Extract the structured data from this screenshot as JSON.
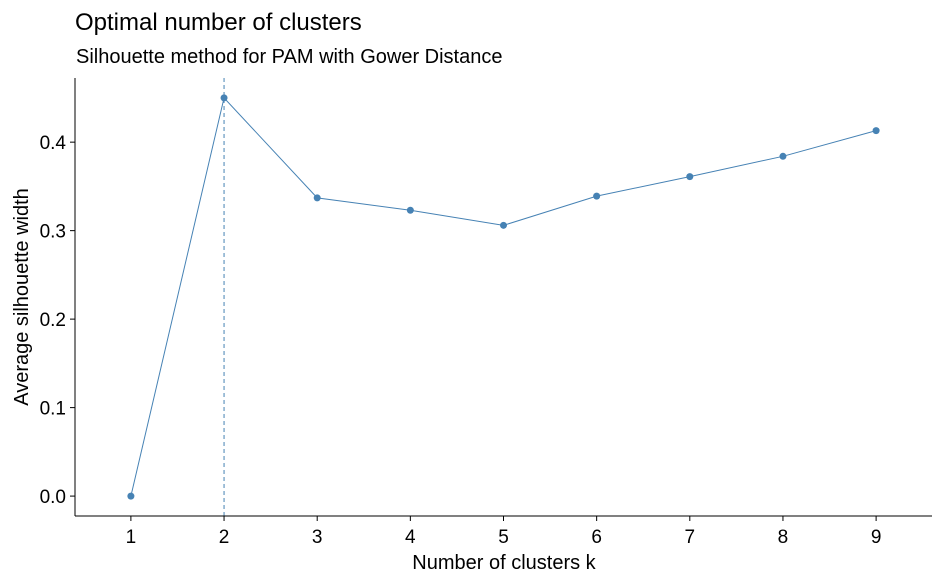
{
  "chart_data": {
    "type": "line",
    "title": "Optimal number of clusters",
    "subtitle": "Silhouette method for PAM with Gower Distance",
    "xlabel": "Number of clusters k",
    "ylabel": "Average silhouette width",
    "x": [
      1,
      2,
      3,
      4,
      5,
      6,
      7,
      8,
      9
    ],
    "x_tick_labels": [
      "1",
      "2",
      "3",
      "4",
      "5",
      "6",
      "7",
      "8",
      "9"
    ],
    "y_ticks": [
      0.0,
      0.1,
      0.2,
      0.3,
      0.4
    ],
    "y_tick_labels": [
      "0.0",
      "0.1",
      "0.2",
      "0.3",
      "0.4"
    ],
    "series": [
      {
        "values": [
          0.0,
          0.45,
          0.337,
          0.323,
          0.306,
          0.339,
          0.361,
          0.384,
          0.413
        ]
      }
    ],
    "optimal_k": 2,
    "xlim": [
      0.4,
      9.6
    ],
    "ylim": [
      -0.0225,
      0.4725
    ],
    "grid": false,
    "legend": "none",
    "line_color": "#4682B4",
    "point_color": "#4682B4",
    "reference_line_color": "#4682B4"
  }
}
